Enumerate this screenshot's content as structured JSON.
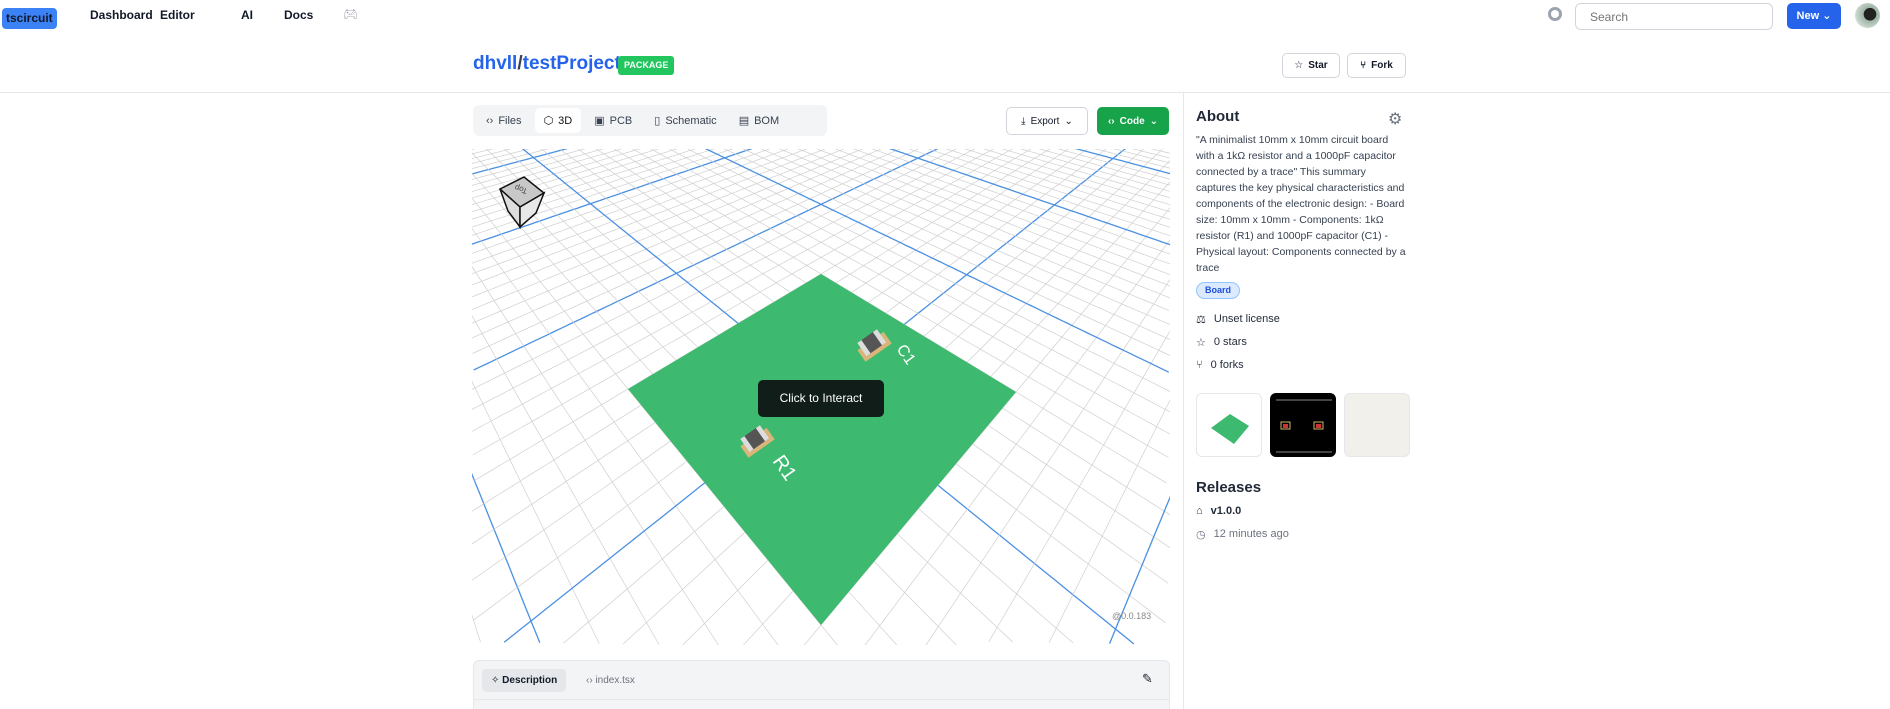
{
  "nav": {
    "logo": "tscircuit",
    "links": [
      "Dashboard",
      "Editor",
      "AI",
      "Docs"
    ],
    "search_placeholder": "Search",
    "new_label": "New"
  },
  "header": {
    "owner": "dhvll",
    "sep": "/",
    "repo": "testProject",
    "badge": "PACKAGE",
    "star_label": "Star",
    "fork_label": "Fork"
  },
  "tabs": [
    {
      "label": "Files",
      "icon": "code-icon"
    },
    {
      "label": "3D",
      "icon": "cube-icon",
      "active": true
    },
    {
      "label": "PCB",
      "icon": "pcb-icon"
    },
    {
      "label": "Schematic",
      "icon": "file-icon"
    },
    {
      "label": "BOM",
      "icon": "clipboard-icon"
    }
  ],
  "actions": {
    "export_label": "Export",
    "code_label": "Code"
  },
  "viewer": {
    "click_label": "Click to Interact",
    "cube_label": "Top",
    "r1": "R1",
    "c1": "C1",
    "version": "@0.0.183",
    "board_color": "#3dba6f",
    "accent_grid": "#4a90e2"
  },
  "about": {
    "title": "About",
    "description": "\"A minimalist 10mm x 10mm circuit board with a 1kΩ resistor and a 1000pF capacitor connected by a trace\" This summary captures the key physical characteristics and components of the electronic design: - Board size: 10mm x 10mm - Components: 1kΩ resistor (R1) and 1000pF capacitor (C1) - Physical layout: Components connected by a trace",
    "tag": "Board",
    "license": "Unset license",
    "stars": "0 stars",
    "forks": "0 forks"
  },
  "releases": {
    "title": "Releases",
    "version": "v1.0.0",
    "time": "12 minutes ago"
  },
  "bottom": {
    "tab_description": "Description",
    "tab_file": "index.tsx"
  }
}
